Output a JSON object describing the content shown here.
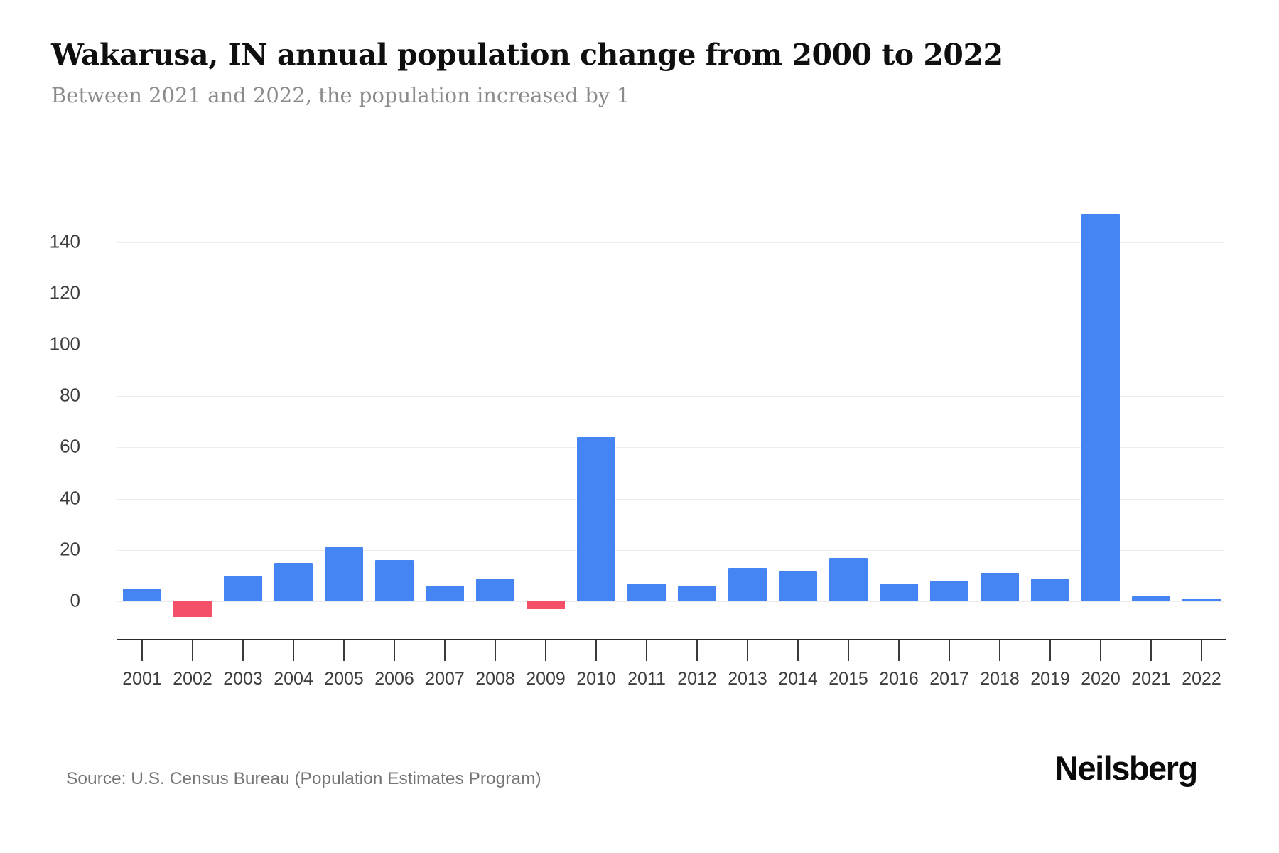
{
  "header": {
    "title": "Wakarusa, IN annual population change from 2000 to 2022",
    "subtitle": "Between 2021 and 2022, the population increased by 1"
  },
  "footer": {
    "source": "Source: U.S. Census Bureau (Population Estimates Program)",
    "logo": "Neilsberg"
  },
  "chart_data": {
    "type": "bar",
    "title": "Wakarusa, IN annual population change from 2000 to 2022",
    "subtitle": "Between 2021 and 2022, the population increased by 1",
    "categories": [
      "2001",
      "2002",
      "2003",
      "2004",
      "2005",
      "2006",
      "2007",
      "2008",
      "2009",
      "2010",
      "2011",
      "2012",
      "2013",
      "2014",
      "2015",
      "2016",
      "2017",
      "2018",
      "2019",
      "2020",
      "2021",
      "2022"
    ],
    "values": [
      5,
      -6,
      10,
      15,
      21,
      16,
      6,
      9,
      -3,
      64,
      7,
      6,
      13,
      12,
      17,
      7,
      8,
      11,
      9,
      151,
      2,
      1
    ],
    "xlabel": "",
    "ylabel": "",
    "yticks": [
      0,
      20,
      40,
      60,
      80,
      100,
      120,
      140
    ],
    "ylim": [
      -12,
      157
    ],
    "grid": true,
    "legend": false,
    "bar_color_positive": "#4484f3",
    "bar_color_negative": "#f4506a",
    "gridline_color": "#ececec",
    "axis_color": "#2b2b2b",
    "source": "Source: U.S. Census Bureau (Population Estimates Program)"
  }
}
